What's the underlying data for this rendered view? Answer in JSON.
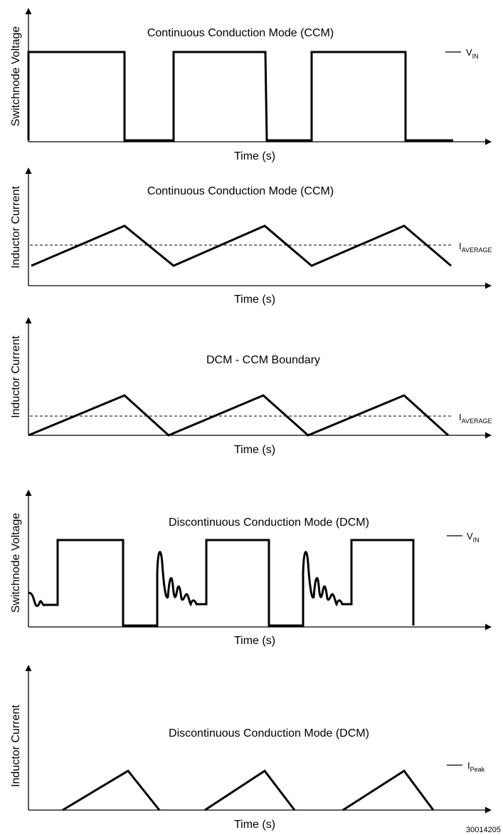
{
  "panels": [
    {
      "id": "ccm-voltage",
      "title": "Continuous Conduction Mode (CCM)",
      "ylabel": "Switchnode Voltage",
      "xlabel": "Time (s)",
      "marker": {
        "main": "V",
        "sub": "IN"
      }
    },
    {
      "id": "ccm-current",
      "title": "Continuous Conduction Mode (CCM)",
      "ylabel": "Inductor Current",
      "xlabel": "Time (s)",
      "marker": {
        "main": "I",
        "sub": "AVERAGE"
      }
    },
    {
      "id": "boundary-current",
      "title": "DCM - CCM Boundary",
      "ylabel": "Inductor Current",
      "xlabel": "Time (s)",
      "marker": {
        "main": "I",
        "sub": "AVERAGE"
      }
    },
    {
      "id": "dcm-voltage",
      "title": "Discontinuous Conduction Mode (DCM)",
      "ylabel": "Switchnode Voltage",
      "xlabel": "Time (s)",
      "marker": {
        "main": "V",
        "sub": "IN"
      }
    },
    {
      "id": "dcm-current",
      "title": "Discontinuous Conduction Mode (DCM)",
      "ylabel": "Inductor Current",
      "xlabel": "Time (s)",
      "marker": {
        "main": "I",
        "sub": "Peak"
      }
    }
  ],
  "figure_id": "30014205",
  "colors": {
    "ink": "#000000",
    "background": "#ffffff"
  }
}
